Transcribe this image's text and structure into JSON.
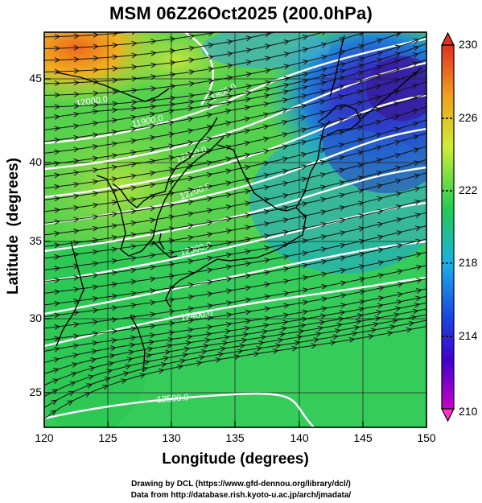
{
  "title": "MSM 06Z26Oct2025 (200.0hPa)",
  "x_axis": {
    "label": "Longitude (degrees)",
    "ticks": [
      "120",
      "125",
      "130",
      "135",
      "140",
      "145",
      "150"
    ],
    "range": [
      120,
      150
    ]
  },
  "y_axis": {
    "label": "Latitude  (degrees)",
    "ticks": [
      "25",
      "30",
      "35",
      "40",
      "45"
    ],
    "range": [
      22.4,
      47.6
    ]
  },
  "colorbar": {
    "ticks": [
      "230",
      "226",
      "222",
      "218",
      "214",
      "210"
    ],
    "range": [
      210,
      230
    ],
    "colors": [
      "#cc00cc",
      "#2222cc",
      "#1aa8e6",
      "#22cc55",
      "#cce633",
      "#f09020",
      "#e03020"
    ]
  },
  "contour_labels": [
    "11800.0",
    "11900.0",
    "12000.0",
    "12100.0",
    "12200.0",
    "12300.0",
    "12400.0",
    "12500.0"
  ],
  "credits": [
    "Drawing by DCL (https://www.gfd-dennou.org/library/dcl/)",
    "Data from http://database.rish.kyoto-u.ac.jp/arch/jmadata/"
  ]
}
